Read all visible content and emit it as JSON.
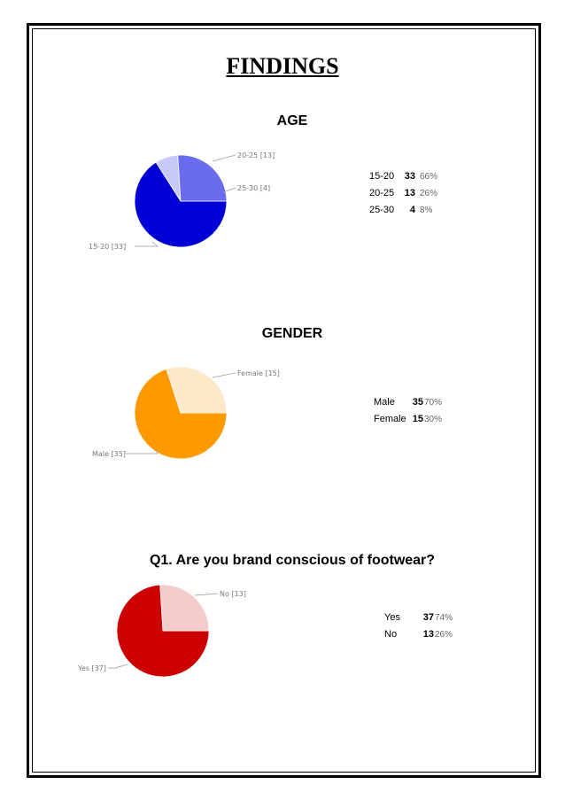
{
  "page": {
    "title": "FINDINGS"
  },
  "chart_data": [
    {
      "type": "pie",
      "title": "AGE",
      "slices": [
        {
          "label": "15-20",
          "value": 33,
          "percent": "66%",
          "color": "#0000d6",
          "callout": "15-20 [33]"
        },
        {
          "label": "25-30",
          "value": 4,
          "percent": "8%",
          "color": "#c7c9f7",
          "callout": "25-30 [4]"
        },
        {
          "label": "20-25",
          "value": 13,
          "percent": "26%",
          "color": "#6a6cef",
          "callout": "20-25 [13]"
        }
      ],
      "table": [
        {
          "label": "15-20",
          "count": "33",
          "percent": "66%"
        },
        {
          "label": "20-25",
          "count": "13",
          "percent": "26%"
        },
        {
          "label": "25-30",
          "count": "4",
          "percent": "8%"
        }
      ]
    },
    {
      "type": "pie",
      "title": "GENDER",
      "slices": [
        {
          "label": "Male",
          "value": 35,
          "percent": "70%",
          "color": "#ff9900",
          "callout": "Male [35]"
        },
        {
          "label": "Female",
          "value": 15,
          "percent": "30%",
          "color": "#fde9c9",
          "callout": "Female [15]"
        }
      ],
      "table": [
        {
          "label": "Male",
          "count": "35",
          "percent": "70%"
        },
        {
          "label": "Female",
          "count": "15",
          "percent": "30%"
        }
      ]
    },
    {
      "type": "pie",
      "title": "Q1. Are you brand conscious of footwear?",
      "slices": [
        {
          "label": "Yes",
          "value": 37,
          "percent": "74%",
          "color": "#cc0000",
          "callout": "Yes [37]"
        },
        {
          "label": "No",
          "value": 13,
          "percent": "26%",
          "color": "#f4cccc",
          "callout": "No [13]"
        }
      ],
      "table": [
        {
          "label": "Yes",
          "count": "37",
          "percent": "74%"
        },
        {
          "label": "No",
          "count": "13",
          "percent": "26%"
        }
      ]
    }
  ]
}
